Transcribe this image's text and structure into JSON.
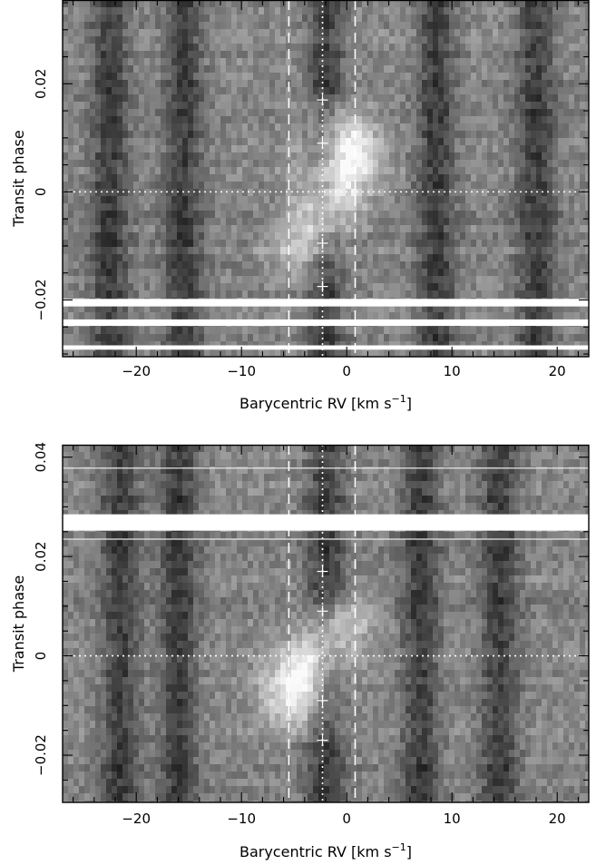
{
  "chart_data": [
    {
      "type": "heatmap",
      "panel": "top",
      "xlabel": "Barycentric RV",
      "xunit": "[km s",
      "xunit_exp": "−1",
      "xunit_close": "]",
      "ylabel": "Transit phase",
      "xlim": [
        -27,
        23
      ],
      "ylim": [
        -0.0305,
        0.0355
      ],
      "xticks": [
        -20,
        -10,
        0,
        10,
        20
      ],
      "xtick_labels": [
        "−20",
        "−10",
        "0",
        "10",
        "20"
      ],
      "yticks": [
        -0.02,
        0,
        0.02
      ],
      "ytick_labels": [
        "−0.02",
        "0",
        "0.02"
      ],
      "colormap": "grayscale",
      "dark_columns_rv": [
        -22.5,
        -15.5,
        -2.0,
        8.5,
        18.0
      ],
      "signal_track": [
        {
          "phase": 0.015,
          "rv": -1.0,
          "amp": 0.4
        },
        {
          "phase": 0.01,
          "rv": -0.2,
          "amp": 0.8
        },
        {
          "phase": 0.005,
          "rv": -0.5,
          "amp": 0.95
        },
        {
          "phase": 0.0,
          "rv": -1.2,
          "amp": 0.85
        },
        {
          "phase": -0.005,
          "rv": -2.4,
          "amp": 0.8
        },
        {
          "phase": -0.01,
          "rv": -3.6,
          "amp": 0.6
        },
        {
          "phase": -0.015,
          "rv": -4.2,
          "amp": 0.25
        }
      ],
      "vlines_dashed": [
        -5.5,
        0.8
      ],
      "vline_dotted": -2.3,
      "hline_dotted": 0,
      "crosses": [
        {
          "rv": -2.3,
          "phase": 0.017
        },
        {
          "rv": -2.3,
          "phase": 0.009
        },
        {
          "rv": -2.3,
          "phase": -0.0095
        },
        {
          "rv": -2.3,
          "phase": -0.0175
        }
      ],
      "gap_bands": [
        {
          "phase_lo": -0.0212,
          "phase_hi": -0.0198
        },
        {
          "phase_lo": -0.0248,
          "phase_hi": -0.0236
        },
        {
          "phase_lo": -0.0292,
          "phase_hi": -0.0284
        }
      ],
      "thin_lines_phase": []
    },
    {
      "type": "heatmap",
      "panel": "bottom",
      "xlabel": "Barycentric RV",
      "xunit": "[km s",
      "xunit_exp": "−1",
      "xunit_close": "]",
      "ylabel": "Transit phase",
      "xlim": [
        -27,
        23
      ],
      "ylim": [
        -0.0295,
        0.0425
      ],
      "xticks": [
        -20,
        -10,
        0,
        10,
        20
      ],
      "xtick_labels": [
        "−20",
        "−10",
        "0",
        "10",
        "20"
      ],
      "yticks": [
        -0.02,
        0,
        0.02,
        0.04
      ],
      "ytick_labels": [
        "−0.02",
        "0",
        "0.02",
        "0.04"
      ],
      "colormap": "grayscale",
      "dark_columns_rv": [
        -21.5,
        -16.0,
        -2.0,
        7.0,
        14.5
      ],
      "signal_track": [
        {
          "phase": 0.01,
          "rv": -0.5,
          "amp": 0.45
        },
        {
          "phase": 0.005,
          "rv": -1.5,
          "amp": 0.65
        },
        {
          "phase": 0.0,
          "rv": -3.0,
          "amp": 0.8
        },
        {
          "phase": -0.005,
          "rv": -4.5,
          "amp": 0.95
        },
        {
          "phase": -0.01,
          "rv": -4.8,
          "amp": 0.7
        },
        {
          "phase": -0.014,
          "rv": -4.5,
          "amp": 0.3
        }
      ],
      "vlines_dashed": [
        -5.5,
        0.8
      ],
      "vline_dotted": -2.3,
      "hline_dotted": 0,
      "crosses": [
        {
          "rv": -2.3,
          "phase": 0.017
        },
        {
          "rv": -2.3,
          "phase": 0.009
        },
        {
          "rv": -2.3,
          "phase": -0.009
        },
        {
          "rv": -2.3,
          "phase": -0.017
        }
      ],
      "gap_bands": [
        {
          "phase_lo": 0.0252,
          "phase_hi": 0.0285
        }
      ],
      "thin_lines_phase": [
        0.0378,
        0.0235
      ]
    }
  ]
}
